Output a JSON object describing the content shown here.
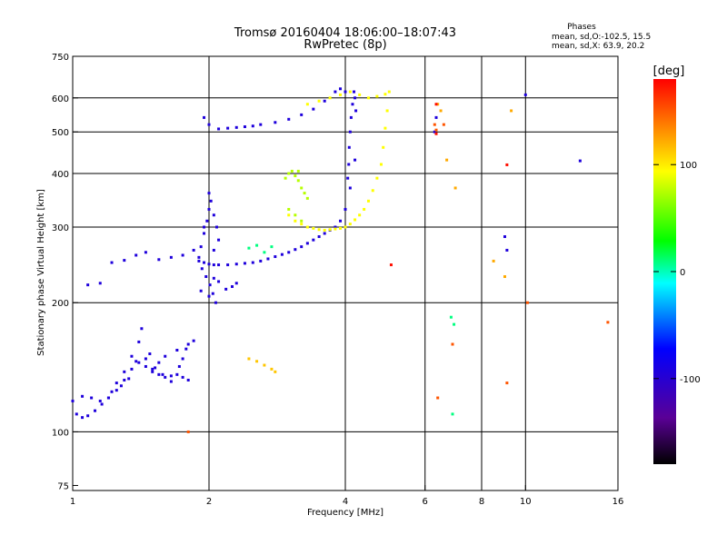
{
  "title": {
    "line1": "Tromsø 20160404 18:06:00–18:07:43",
    "line2": "RwPretec (8p)"
  },
  "phase_info": {
    "heading": "Phases",
    "line1": "mean, sd,O:-102.5, 15.5",
    "line2": "mean, sd,X:  63.9, 20.2"
  },
  "chart_data": {
    "type": "scatter",
    "title": "Tromsø 20160404 18:06:00–18:07:43",
    "subtitle": "RwPretec (8p)",
    "xlabel": "Frequency [MHz]",
    "ylabel": "Stationary phase Virtual Height [km]",
    "xscale": "log2",
    "yscale": "log",
    "xlim": [
      1,
      16
    ],
    "ylim": [
      73,
      750
    ],
    "x_ticks": [
      1,
      2,
      4,
      6,
      8,
      10,
      16
    ],
    "x_grid": [
      2,
      4,
      6,
      8,
      10
    ],
    "y_ticks": [
      75,
      100,
      200,
      300,
      400,
      500,
      600,
      750
    ],
    "y_grid": [
      100,
      200,
      300,
      400,
      500,
      600
    ],
    "grid": true,
    "colorbar": {
      "label": "[deg]",
      "range": [
        -180,
        180
      ],
      "ticks": [
        100,
        0,
        -100
      ],
      "colors": [
        "#000000",
        "#5a0096",
        "#0000ff",
        "#00ffff",
        "#00ff00",
        "#ffff00",
        "#ff0000"
      ]
    },
    "series": [
      {
        "phase": -100,
        "x": [
          1.02,
          1.05,
          1.08,
          1.12,
          1.16,
          1.2,
          1.25,
          1.3,
          1.35,
          1.4,
          1.45,
          1.5,
          1.55,
          1.6,
          1.65,
          1.7,
          1.75,
          1.8
        ],
        "y": [
          110,
          108,
          109,
          112,
          116,
          120,
          125,
          132,
          140,
          145,
          142,
          138,
          136,
          134,
          135,
          136,
          134,
          132
        ]
      },
      {
        "phase": -100,
        "x": [
          1.0,
          1.05,
          1.1,
          1.15,
          1.2,
          1.22,
          1.25,
          1.3,
          1.35,
          1.4,
          1.45,
          1.5,
          1.55,
          1.6,
          1.7,
          1.75,
          1.8
        ],
        "y": [
          118,
          121,
          120,
          118,
          120,
          124,
          130,
          138,
          150,
          162,
          148,
          140,
          145,
          150,
          155,
          148,
          160
        ]
      },
      {
        "phase": -100,
        "x": [
          1.28,
          1.33,
          1.38,
          1.42,
          1.48,
          1.52,
          1.58,
          1.65,
          1.72,
          1.78,
          1.85
        ],
        "y": [
          128,
          133,
          146,
          174,
          152,
          141,
          136,
          131,
          142,
          156,
          163
        ]
      },
      {
        "phase": -100,
        "x": [
          1.08,
          1.15,
          1.22,
          1.3,
          1.38,
          1.45,
          1.55,
          1.65,
          1.75,
          1.85
        ],
        "y": [
          220,
          222,
          248,
          251,
          258,
          262,
          252,
          255,
          258,
          265
        ]
      },
      {
        "phase": -100,
        "x": [
          1.9,
          1.95,
          2.0,
          2.05,
          2.1,
          2.2,
          2.3,
          2.4,
          2.5,
          2.6,
          2.7,
          2.8,
          2.9,
          3.0,
          3.1,
          3.2,
          3.3,
          3.4,
          3.5,
          3.6,
          3.7,
          3.8,
          3.9,
          4.0,
          4.1,
          4.2
        ],
        "y": [
          250,
          248,
          246,
          245,
          245,
          245,
          246,
          247,
          248,
          250,
          253,
          256,
          259,
          262,
          266,
          270,
          275,
          280,
          285,
          290,
          295,
          300,
          310,
          330,
          370,
          430
        ]
      },
      {
        "phase": -100,
        "x": [
          1.9,
          1.92,
          1.95,
          1.98,
          2.0,
          2.02,
          2.05,
          2.08,
          2.1,
          1.93,
          1.97,
          2.01,
          2.04,
          2.07,
          1.95,
          2.0,
          2.05
        ],
        "y": [
          255,
          270,
          290,
          310,
          330,
          345,
          320,
          300,
          280,
          240,
          230,
          220,
          210,
          200,
          300,
          360,
          265
        ]
      },
      {
        "phase": -100,
        "x": [
          1.92,
          2.0,
          2.05,
          2.1,
          2.18,
          2.25,
          2.3
        ],
        "y": [
          213,
          207,
          228,
          224,
          215,
          218,
          222
        ]
      },
      {
        "phase": -100,
        "x": [
          1.95,
          2.0,
          2.1,
          2.2,
          2.3,
          2.4,
          2.5,
          2.6,
          2.8,
          3.0,
          3.2,
          3.4,
          3.6,
          3.8,
          3.9,
          4.0
        ],
        "y": [
          540,
          520,
          508,
          510,
          512,
          514,
          516,
          520,
          526,
          535,
          548,
          565,
          590,
          620,
          630,
          620
        ]
      },
      {
        "phase": -100,
        "x": [
          4.05,
          4.07,
          4.08,
          4.1,
          4.12,
          4.15,
          4.18,
          4.2,
          4.22
        ],
        "y": [
          390,
          420,
          460,
          500,
          540,
          580,
          620,
          600,
          560
        ]
      },
      {
        "phase": -100,
        "x": [
          6.3,
          6.35,
          9.0,
          9.1,
          10.0,
          13.2
        ],
        "y": [
          500,
          540,
          285,
          265,
          610,
          428
        ]
      },
      {
        "phase": 0,
        "x": [
          2.45,
          2.55,
          2.65,
          2.75,
          6.85,
          6.95,
          6.9
        ],
        "y": [
          268,
          272,
          262,
          270,
          185,
          178,
          110
        ]
      },
      {
        "phase": 70,
        "x": [
          2.95,
          3.0,
          3.05,
          3.1,
          3.15,
          3.2,
          3.25,
          3.3,
          3.0,
          3.1,
          3.2,
          3.15
        ],
        "y": [
          390,
          400,
          405,
          395,
          385,
          370,
          360,
          350,
          330,
          320,
          310,
          405
        ]
      },
      {
        "phase": 90,
        "x": [
          3.0,
          3.1,
          3.2,
          3.3,
          3.4,
          3.5,
          3.6,
          3.7,
          3.8,
          3.9,
          4.0,
          4.1,
          4.2,
          4.3,
          4.4,
          4.5,
          4.6,
          4.7,
          4.8,
          4.85,
          4.9,
          4.95,
          5.0
        ],
        "y": [
          320,
          310,
          305,
          300,
          298,
          296,
          295,
          296,
          297,
          298,
          300,
          305,
          312,
          320,
          330,
          345,
          365,
          390,
          420,
          460,
          510,
          560,
          620
        ]
      },
      {
        "phase": 90,
        "x": [
          3.3,
          3.5,
          3.7,
          3.9,
          4.1,
          4.3,
          4.5,
          4.7,
          4.9
        ],
        "y": [
          580,
          590,
          600,
          610,
          620,
          610,
          600,
          605,
          612
        ]
      },
      {
        "phase": 110,
        "x": [
          2.45,
          2.55,
          2.65,
          2.75,
          2.8
        ],
        "y": [
          148,
          146,
          143,
          140,
          138
        ]
      },
      {
        "phase": 120,
        "x": [
          6.4,
          6.5,
          6.7,
          7.0,
          8.5,
          9.0,
          9.3
        ],
        "y": [
          580,
          560,
          430,
          370,
          250,
          230,
          560
        ]
      },
      {
        "phase": 150,
        "x": [
          6.3,
          6.35,
          6.9,
          1.8,
          9.1,
          10.1,
          15.2,
          6.4,
          6.6
        ],
        "y": [
          520,
          505,
          160,
          100,
          130,
          200,
          180,
          120,
          520
        ]
      },
      {
        "phase": 175,
        "x": [
          6.35,
          5.05,
          6.35,
          9.1
        ],
        "y": [
          495,
          245,
          580,
          419
        ]
      }
    ]
  }
}
